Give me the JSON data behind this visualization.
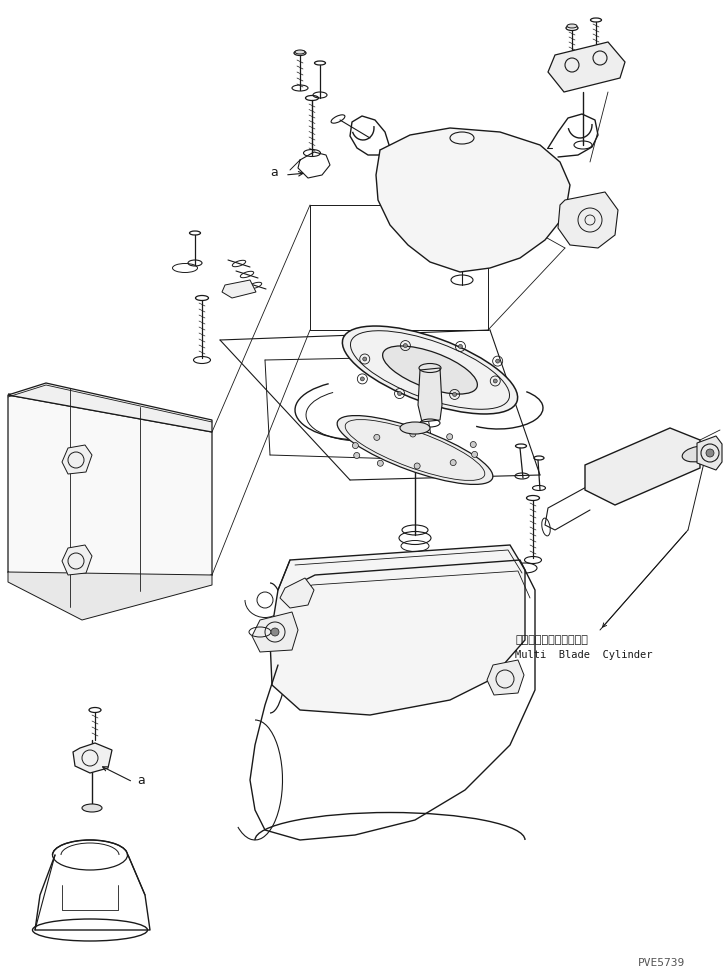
{
  "background_color": "#ffffff",
  "line_color": "#1a1a1a",
  "text_color": "#1a1a1a",
  "figure_width": 7.28,
  "figure_height": 9.75,
  "dpi": 100,
  "label_japanese": "マルチブレードシリンダ",
  "label_english": "Multi  Blade  Cylinder",
  "label_a1": "a",
  "label_a2": "a",
  "watermark": "PVE5739"
}
